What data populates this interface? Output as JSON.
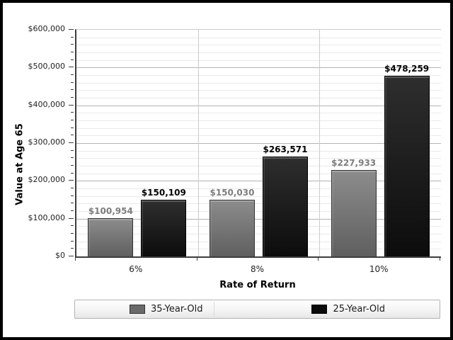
{
  "window": {
    "background": "#ffffff",
    "frame_color": "#000000"
  },
  "chart_data": {
    "type": "bar",
    "title": "",
    "xlabel": "Rate of Return",
    "ylabel": "Value at Age 65",
    "categories": [
      "6%",
      "8%",
      "10%"
    ],
    "series": [
      {
        "name": "35-Year-Old",
        "values": [
          100954,
          150030,
          227933
        ],
        "labels": [
          "$100,954",
          "$150,030",
          "$227,933"
        ],
        "color_top": "#8c8c8c",
        "color_bottom": "#5f5f5f",
        "border_color": "#333333",
        "swatch_color": "#6a6a6a",
        "label_color": "#7d7d7d"
      },
      {
        "name": "25-Year-Old",
        "values": [
          150109,
          263571,
          478259
        ],
        "labels": [
          "$150,109",
          "$263,571",
          "$478,259"
        ],
        "color_top": "#2e2e2e",
        "color_bottom": "#0c0c0c",
        "border_color": "#000000",
        "swatch_color": "#0b0b0b",
        "label_color": "#000000"
      }
    ],
    "ylim": [
      0,
      600000
    ],
    "ytick_step": 100000,
    "ytick_labels": [
      "$0",
      "$100,000",
      "$200,000",
      "$300,000",
      "$400,000",
      "$500,000",
      "$600,000"
    ],
    "minor_step": 20000,
    "grid": {
      "major_color": "#b3b3b3",
      "minor_color": "#e9e9e9",
      "vertical_color": "#cccccc",
      "axis_color": "#3d3d3d"
    },
    "legend_position": "bottom"
  }
}
